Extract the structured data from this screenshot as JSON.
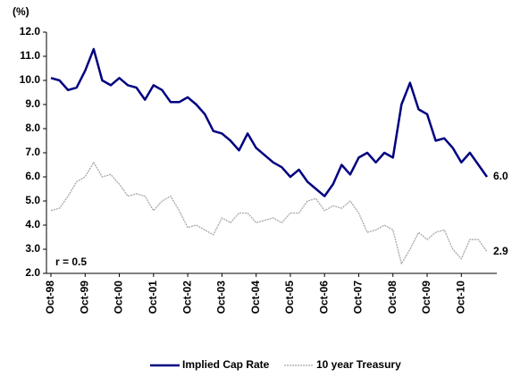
{
  "chart_data": {
    "type": "line",
    "y_label": "(%)",
    "categories": [
      "Oct-98",
      null,
      null,
      null,
      "Oct-99",
      null,
      null,
      null,
      "Oct-00",
      null,
      null,
      null,
      "Oct-01",
      null,
      null,
      null,
      "Oct-02",
      null,
      null,
      null,
      "Oct-03",
      null,
      null,
      null,
      "Oct-04",
      null,
      null,
      null,
      "Oct-05",
      null,
      null,
      null,
      "Oct-06",
      null,
      null,
      null,
      "Oct-07",
      null,
      null,
      null,
      "Oct-08",
      null,
      null,
      null,
      "Oct-09",
      null,
      null,
      null,
      "Oct-10",
      null,
      null,
      null
    ],
    "series": [
      {
        "name": "Implied Cap Rate",
        "color": "#000080",
        "dashed": false,
        "values": [
          10.1,
          10.0,
          9.6,
          9.7,
          10.4,
          11.3,
          10.0,
          9.8,
          10.1,
          9.8,
          9.7,
          9.2,
          9.8,
          9.6,
          9.1,
          9.1,
          9.3,
          9.0,
          8.6,
          7.9,
          7.8,
          7.5,
          7.1,
          7.8,
          7.2,
          6.9,
          6.6,
          6.4,
          6.0,
          6.3,
          5.8,
          5.5,
          5.2,
          5.7,
          6.5,
          6.1,
          6.8,
          7.0,
          6.6,
          7.0,
          6.8,
          9.0,
          9.9,
          8.8,
          8.6,
          7.5,
          7.6,
          7.2,
          6.6,
          7.0,
          6.5,
          6.0
        ]
      },
      {
        "name": "10 year Treasury",
        "color": "#a6a6a6",
        "dashed": true,
        "values": [
          4.6,
          4.7,
          5.2,
          5.8,
          6.0,
          6.6,
          6.0,
          6.1,
          5.7,
          5.2,
          5.3,
          5.2,
          4.6,
          5.0,
          5.2,
          4.6,
          3.9,
          4.0,
          3.8,
          3.6,
          4.3,
          4.1,
          4.5,
          4.5,
          4.1,
          4.2,
          4.3,
          4.1,
          4.5,
          4.5,
          5.0,
          5.1,
          4.6,
          4.8,
          4.7,
          5.0,
          4.5,
          3.7,
          3.8,
          4.0,
          3.8,
          2.4,
          3.0,
          3.7,
          3.4,
          3.7,
          3.8,
          3.0,
          2.6,
          3.4,
          3.4,
          2.9
        ]
      }
    ],
    "annotations": [
      "6.0",
      "2.9",
      "r =  0.5"
    ],
    "ylim": [
      2,
      12
    ],
    "yticks": [
      {
        "value": 2,
        "label": "2.0"
      },
      {
        "value": 3,
        "label": "3.0"
      },
      {
        "value": 4,
        "label": "4.0"
      },
      {
        "value": 5,
        "label": "5.0"
      },
      {
        "value": 6,
        "label": "6.0"
      },
      {
        "value": 7,
        "label": "7.0"
      },
      {
        "value": 8,
        "label": "8.0"
      },
      {
        "value": 9,
        "label": "9.0"
      },
      {
        "value": 10,
        "label": "10.0"
      },
      {
        "value": 11,
        "label": "11.0"
      },
      {
        "value": 12,
        "label": "12.0"
      }
    ],
    "grid": false,
    "legend": "bottom"
  }
}
